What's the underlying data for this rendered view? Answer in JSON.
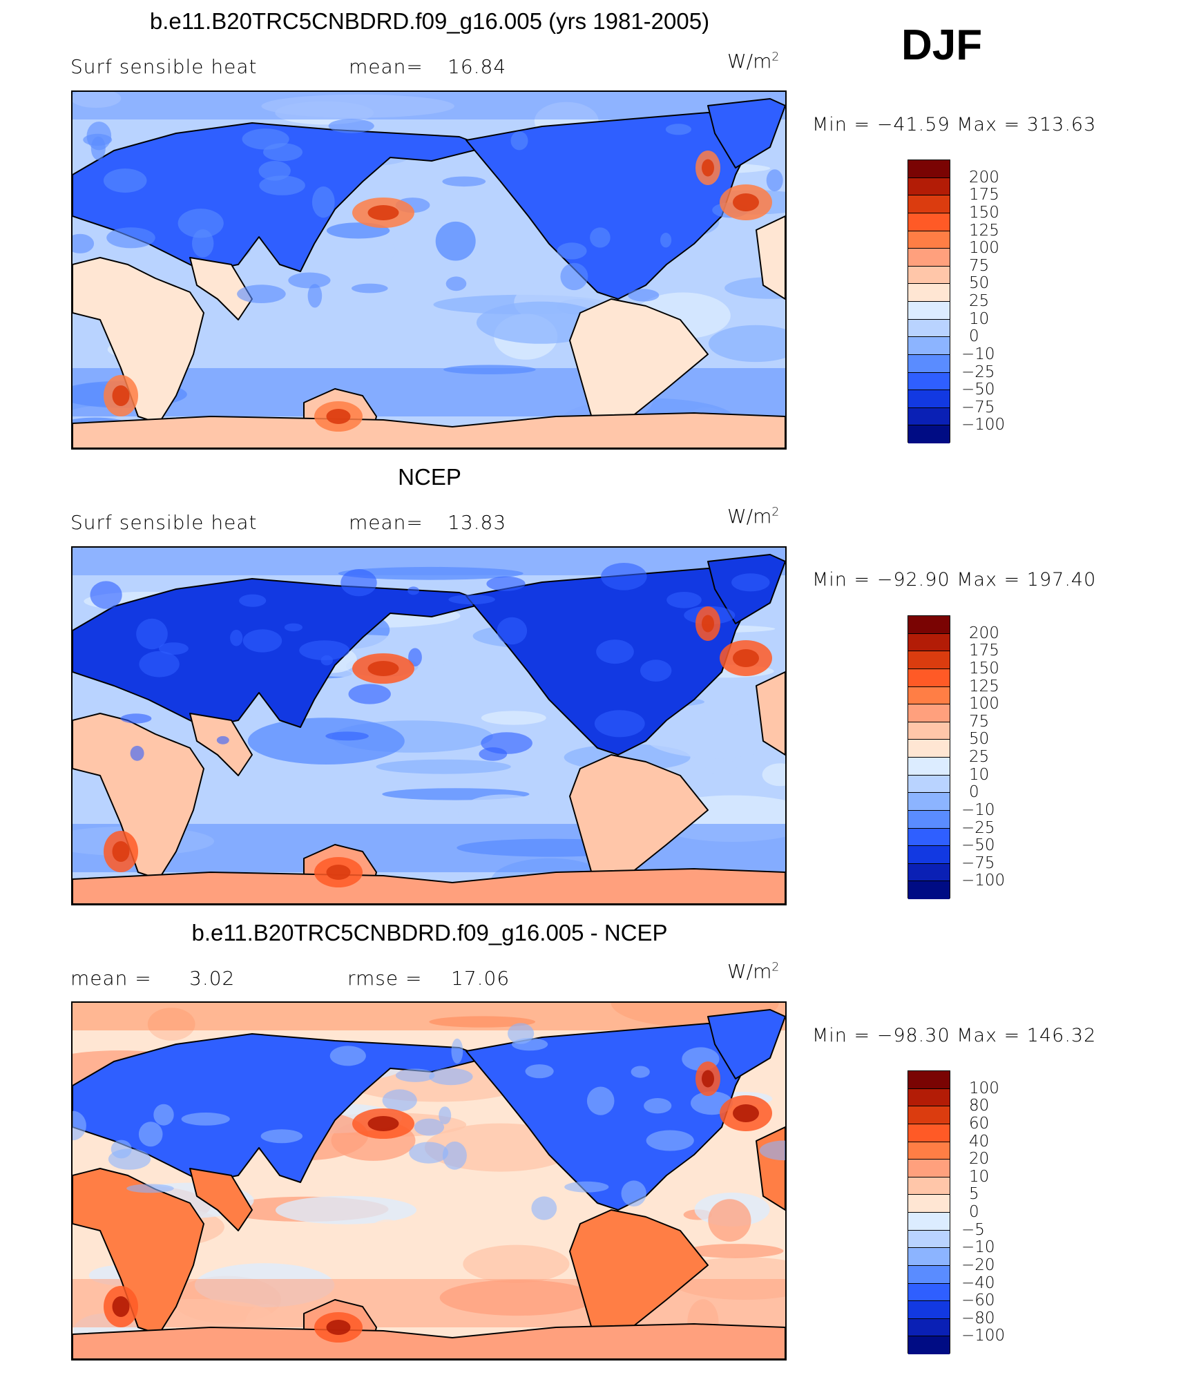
{
  "season": "DJF",
  "panels": [
    {
      "title": "b.e11.B20TRC5CNBDRD.f09_g16.005 (yrs 1981-2005)",
      "left_label": "Surf  sensible  heat",
      "center_label": "mean=",
      "center_value": "16.84",
      "units": "W/m",
      "units_sup": "2",
      "min_label": "Min  =  −41.59  Max  =  313.63",
      "colorbar": {
        "labels": [
          "200",
          "175",
          "150",
          "125",
          "100",
          "75",
          "50",
          "25",
          "10",
          "0",
          "−10",
          "−25",
          "−50",
          "−75",
          "−100"
        ],
        "colors": [
          "#7a0403",
          "#b31c06",
          "#db3c0f",
          "#ff5a26",
          "#ff7e45",
          "#ffa07d",
          "#ffc6a9",
          "#ffe6d3",
          "#dcecff",
          "#b9d3ff",
          "#8cb4ff",
          "#5a8cff",
          "#2f5fff",
          "#1239e2",
          "#0a20b5",
          "#000c84"
        ]
      },
      "ocean": "#b9d3ff",
      "land_colors": [
        "#ffe6d3",
        "#ffc6a9",
        "#2f5fff",
        "#5a8cff"
      ],
      "hot": [
        "#ff7e45",
        "#db3c0f"
      ]
    },
    {
      "title": "NCEP",
      "left_label": "Surf  sensible  heat",
      "center_label": "mean=",
      "center_value": "13.83",
      "units": "W/m",
      "units_sup": "2",
      "min_label": "Min  =  −92.90  Max  =  197.40",
      "colorbar": {
        "labels": [
          "200",
          "175",
          "150",
          "125",
          "100",
          "75",
          "50",
          "25",
          "10",
          "0",
          "−10",
          "−25",
          "−50",
          "−75",
          "−100"
        ],
        "colors": [
          "#7a0403",
          "#b31c06",
          "#db3c0f",
          "#ff5a26",
          "#ff7e45",
          "#ffa07d",
          "#ffc6a9",
          "#ffe6d3",
          "#dcecff",
          "#b9d3ff",
          "#8cb4ff",
          "#5a8cff",
          "#2f5fff",
          "#1239e2",
          "#0a20b5",
          "#000c84"
        ]
      },
      "ocean": "#b9d3ff",
      "land_colors": [
        "#ffc6a9",
        "#ffa07d",
        "#1239e2",
        "#2f5fff"
      ],
      "hot": [
        "#ff5a26",
        "#db3c0f"
      ]
    },
    {
      "title": "b.e11.B20TRC5CNBDRD.f09_g16.005 - NCEP",
      "left_label": "mean  =",
      "left_value": "3.02",
      "center_label": "rmse  =",
      "center_value": "17.06",
      "units": "W/m",
      "units_sup": "2",
      "min_label": "Min  =  −98.30  Max  =  146.32",
      "colorbar": {
        "labels": [
          "100",
          "80",
          "60",
          "40",
          "20",
          "10",
          "5",
          "0",
          "−5",
          "−10",
          "−20",
          "−40",
          "−60",
          "−80",
          "−100"
        ],
        "colors": [
          "#7a0403",
          "#b31c06",
          "#db3c0f",
          "#ff5a26",
          "#ff7e45",
          "#ffa07d",
          "#ffc6a9",
          "#ffe6d3",
          "#dcecff",
          "#b9d3ff",
          "#8cb4ff",
          "#5a8cff",
          "#2f5fff",
          "#1239e2",
          "#0a20b5",
          "#000c84"
        ]
      },
      "ocean": "#ffe6d3",
      "land_colors": [
        "#ff7e45",
        "#ffa07d",
        "#2f5fff",
        "#8cb4ff"
      ],
      "hot": [
        "#ff5a26",
        "#b31c06"
      ]
    }
  ]
}
